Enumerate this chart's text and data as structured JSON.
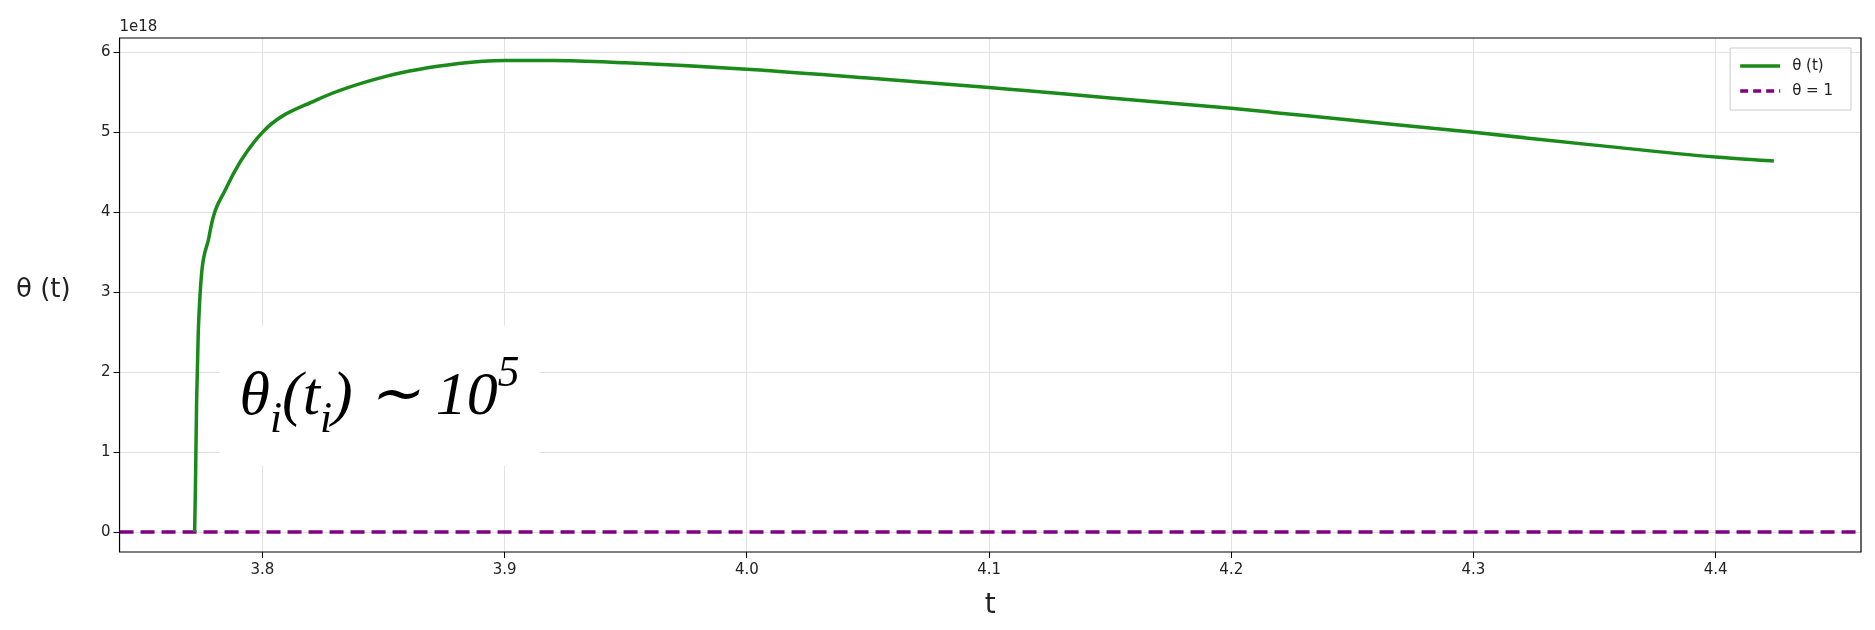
{
  "chart_data": {
    "type": "line",
    "xlabel": "t",
    "ylabel": "θ (t)",
    "xlim": [
      3.741,
      4.46
    ],
    "xticks": [
      3.8,
      3.9,
      {
        "value": 4.0,
        "label": "4.0"
      },
      4.1,
      4.2,
      4.3,
      4.4
    ],
    "ylim": [
      -0.25,
      6.18
    ],
    "yticks": [
      0,
      1,
      2,
      3,
      4,
      5,
      6
    ],
    "series": [
      {
        "name": "θ (t)",
        "color": "#1a8a1a",
        "line_style": "solid",
        "x": [
          3.772,
          3.7724,
          3.7728,
          3.7735,
          3.778,
          3.785,
          3.8,
          3.822,
          3.851,
          3.881,
          3.9,
          3.92,
          3.95,
          4.0,
          4.05,
          4.1,
          4.15,
          4.2,
          4.25,
          4.3,
          4.35,
          4.4,
          4.424
        ],
        "values": [
          0,
          0.7,
          1.6,
          2.5,
          3.7,
          4.3,
          5.0,
          5.4,
          5.7,
          5.86,
          5.9,
          5.9,
          5.87,
          5.79,
          5.68,
          5.56,
          5.43,
          5.3,
          5.15,
          5.0,
          4.84,
          4.69,
          4.64
        ]
      },
      {
        "name": "θ = 1",
        "color": "#800080",
        "line_style": "dashed",
        "x": [
          3.741,
          4.46
        ],
        "values": [
          0,
          0
        ]
      }
    ],
    "grid": true,
    "legend": "top right",
    "annotations": [
      "1e18",
      "θ$_{i}$(t$_{i}$) ∼ 10$^{5}$"
    ]
  }
}
